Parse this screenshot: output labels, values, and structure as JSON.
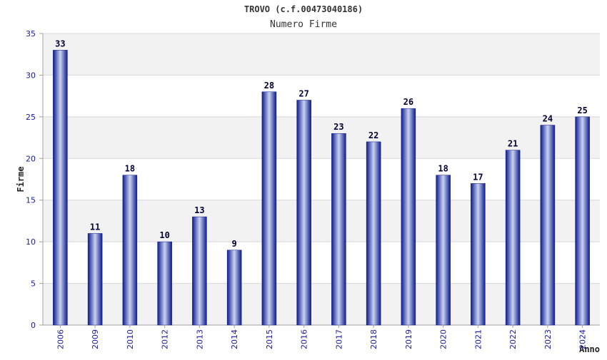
{
  "chart_data": {
    "type": "bar",
    "title": "TROVO (c.f.00473040186)",
    "subtitle": "Numero Firme",
    "xlabel": "Anno",
    "ylabel": "Firme",
    "categories": [
      "2006",
      "2009",
      "2010",
      "2012",
      "2013",
      "2014",
      "2015",
      "2016",
      "2017",
      "2018",
      "2019",
      "2020",
      "2021",
      "2022",
      "2023",
      "2024"
    ],
    "values": [
      33,
      11,
      18,
      10,
      13,
      9,
      28,
      27,
      23,
      22,
      26,
      18,
      17,
      21,
      24,
      25
    ],
    "ylim": [
      0,
      35
    ],
    "yticks": [
      0,
      5,
      10,
      15,
      20,
      25,
      30,
      35
    ],
    "grid": true,
    "legend": "none",
    "colors": {
      "bar_edge": "#0d1a8c",
      "bar_mid": "#c9d3f2",
      "band_alt": "#f2f2f2",
      "grid_line": "#d8d8d8",
      "axis_line": "#a0a0a0",
      "tick_text": "#1a1aa6"
    }
  }
}
